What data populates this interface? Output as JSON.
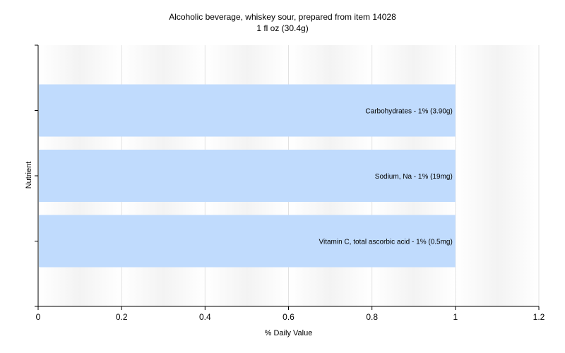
{
  "chart_data": {
    "type": "bar",
    "orientation": "horizontal",
    "title": "Alcoholic beverage, whiskey sour, prepared from item 14028",
    "subtitle": "1 fl oz (30.4g)",
    "xlabel": "% Daily Value",
    "ylabel": "Nutrient",
    "xlim": [
      0,
      1.2
    ],
    "xticks": [
      "0",
      "0.2",
      "0.4",
      "0.6",
      "0.8",
      "1",
      "1.2"
    ],
    "grid": true,
    "legend": "none",
    "categories": [
      "Carbohydrates",
      "Sodium, Na",
      "Vitamin C, total ascorbic acid"
    ],
    "values": [
      1,
      1,
      1
    ],
    "data_labels": [
      "Carbohydrates - 1% (3.90g)",
      "Sodium, Na - 1% (19mg)",
      "Vitamin C, total ascorbic acid - 1% (0.5mg)"
    ],
    "colors": {
      "bar": "#c0dbfd",
      "grid": "#e2e2e2",
      "band": "#f3f3f3",
      "axis": "#000000"
    }
  }
}
